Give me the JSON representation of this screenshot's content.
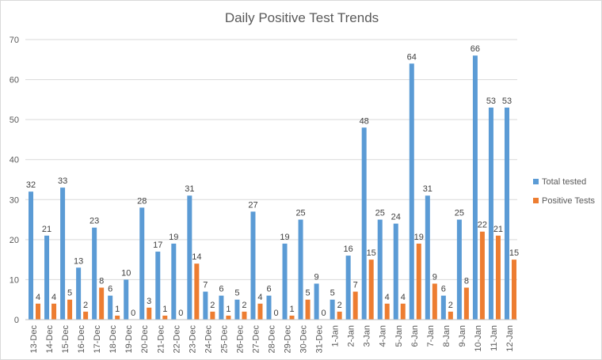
{
  "chart_data": {
    "type": "bar",
    "title": "Daily Positive Test Trends",
    "xlabel": "",
    "ylabel": "",
    "ylim": [
      0,
      70
    ],
    "yticks": [
      0,
      10,
      20,
      30,
      40,
      50,
      60,
      70
    ],
    "grid": true,
    "legend_position": "right",
    "categories": [
      "13-Dec",
      "14-Dec",
      "15-Dec",
      "16-Dec",
      "17-Dec",
      "18-Dec",
      "19-Dec",
      "20-Dec",
      "21-Dec",
      "22-Dec",
      "23-Dec",
      "24-Dec",
      "25-Dec",
      "26-Dec",
      "27-Dec",
      "28-Dec",
      "29-Dec",
      "30-Dec",
      "31-Dec",
      "1-Jan",
      "2-Jan",
      "3-Jan",
      "4-Jan",
      "5-Jan",
      "6-Jan",
      "7-Jan",
      "8-Jan",
      "9-Jan",
      "10-Jan",
      "11-Jan",
      "12-Jan"
    ],
    "series": [
      {
        "name": "Total tested",
        "color": "#5b9bd5",
        "values": [
          32,
          21,
          33,
          13,
          23,
          6,
          10,
          28,
          17,
          19,
          31,
          7,
          6,
          5,
          27,
          6,
          19,
          25,
          9,
          5,
          16,
          48,
          25,
          24,
          64,
          31,
          6,
          25,
          66,
          53,
          53
        ]
      },
      {
        "name": "Positive Tests",
        "color": "#ed7d31",
        "values": [
          4,
          4,
          5,
          2,
          8,
          1,
          0,
          3,
          1,
          0,
          14,
          2,
          1,
          2,
          4,
          0,
          1,
          5,
          0,
          2,
          7,
          15,
          4,
          4,
          19,
          9,
          2,
          8,
          22,
          21,
          15
        ]
      }
    ]
  }
}
